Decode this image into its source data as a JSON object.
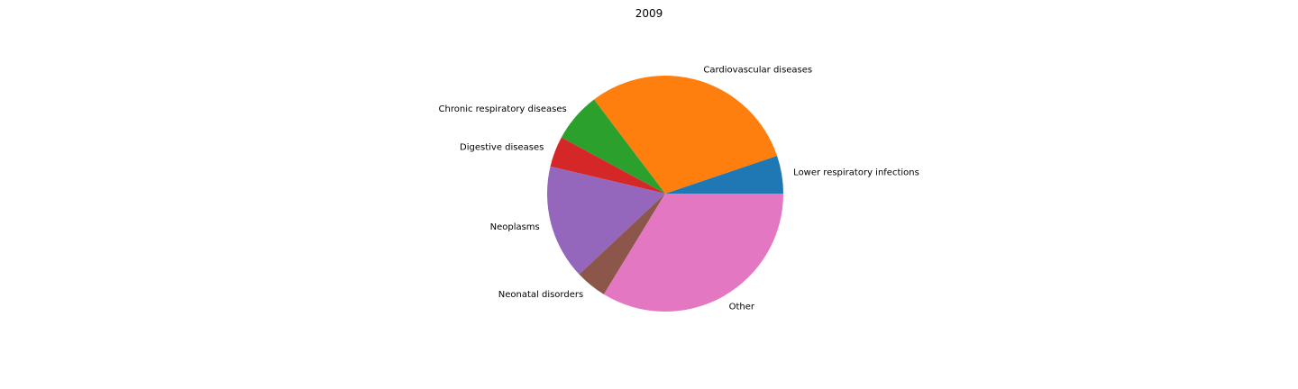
{
  "chart_data": {
    "type": "pie",
    "title": "2009",
    "slices": [
      {
        "label": "Lower respiratory infections",
        "value": 5.2,
        "color": "#1f77b4"
      },
      {
        "label": "Cardiovascular diseases",
        "value": 30.1,
        "color": "#ff7f0e"
      },
      {
        "label": "Chronic respiratory diseases",
        "value": 6.8,
        "color": "#2ca02c"
      },
      {
        "label": "Digestive diseases",
        "value": 4.2,
        "color": "#d62728"
      },
      {
        "label": "Neoplasms",
        "value": 15.7,
        "color": "#9467bd"
      },
      {
        "label": "Neonatal disorders",
        "value": 4.3,
        "color": "#8c564b"
      },
      {
        "label": "Other",
        "value": 33.7,
        "color": "#e377c2"
      }
    ],
    "start_angle": 0,
    "direction": "counterclockwise",
    "legend": "none"
  }
}
